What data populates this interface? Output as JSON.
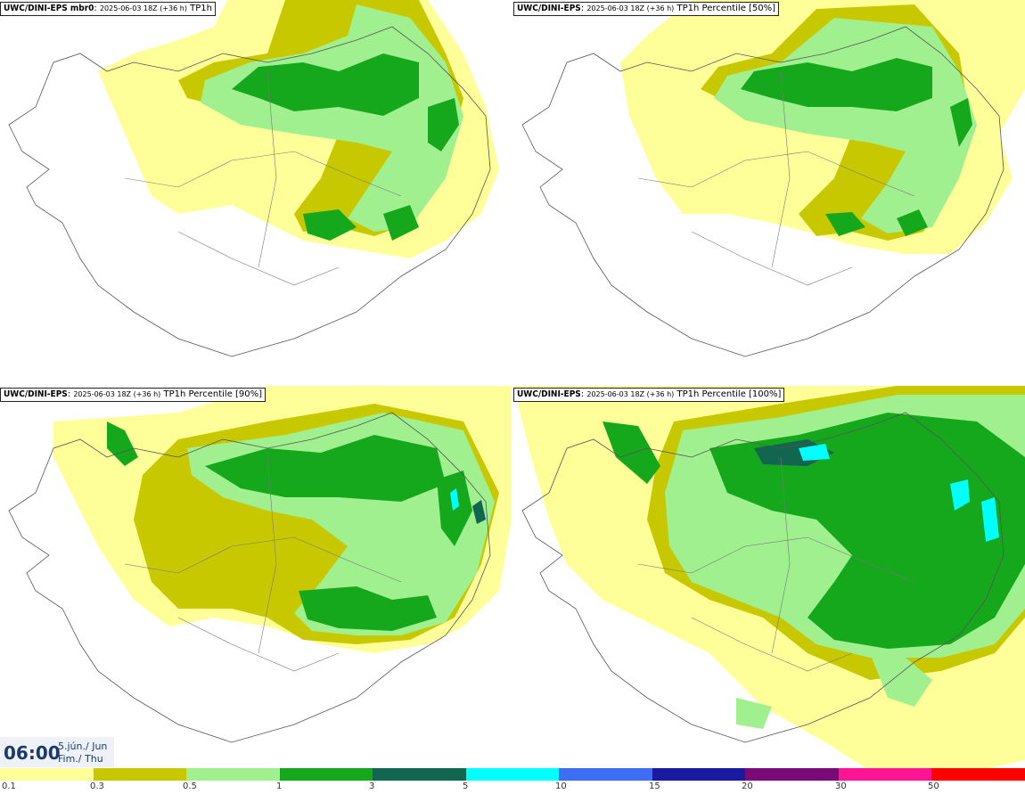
{
  "panels": [
    {
      "model": "UWC/DINI-EPS mbr0",
      "run": "2025-06-03 18Z (+36 h)",
      "field": "TP1h"
    },
    {
      "model": "UWC/DINI-EPS",
      "run": "2025-06-03 18Z (+36 h)",
      "field": "TP1h Percentile [50%]"
    },
    {
      "model": "UWC/DINI-EPS",
      "run": "2025-06-03 18Z (+36 h)",
      "field": "TP1h Percentile [90%]"
    },
    {
      "model": "UWC/DINI-EPS",
      "run": "2025-06-03 18Z (+36 h)",
      "field": "TP1h Percentile [100%]"
    }
  ],
  "valid_time": {
    "time": "06:00",
    "date_is": "5.jún./ Jun",
    "weekday": "Fim./ Thu"
  },
  "colorbar": {
    "colors": [
      "#ffff99",
      "#c8c800",
      "#a0f090",
      "#15a81d",
      "#12654f",
      "#00ffff",
      "#3d6cf5",
      "#1a1aa0",
      "#7a0a78",
      "#ff1493",
      "#ff0000"
    ],
    "ticks": [
      "0.1",
      "0.3",
      "0.5",
      "1",
      "3",
      "5",
      "10",
      "15",
      "20",
      "30",
      "50"
    ]
  }
}
